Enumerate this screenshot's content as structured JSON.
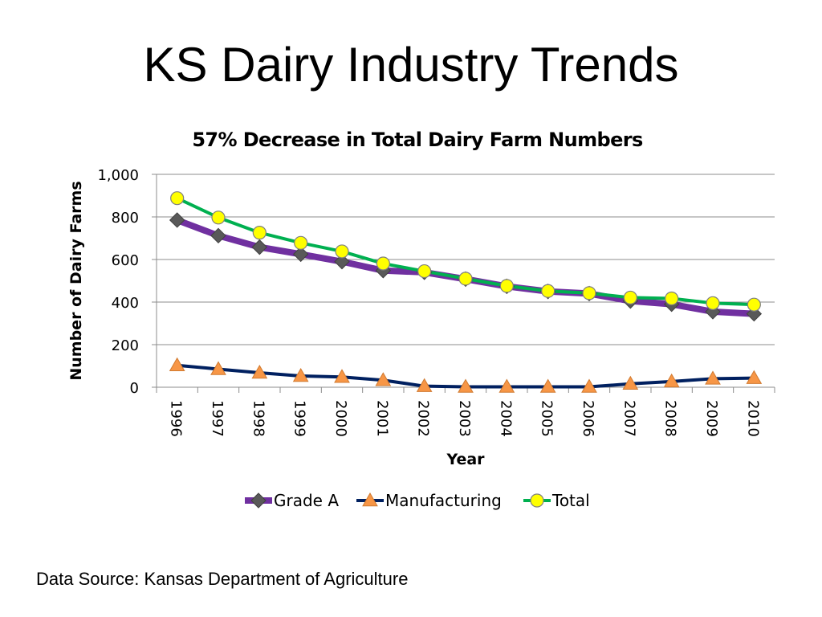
{
  "slide": {
    "title": "KS Dairy Industry Trends",
    "source": "Data Source: Kansas Department of Agriculture"
  },
  "chart_data": {
    "type": "line",
    "title": "57% Decrease in Total Dairy Farm Numbers",
    "xlabel": "Year",
    "ylabel": "Number of Dairy Farms",
    "x": [
      "1996",
      "1997",
      "1998",
      "1999",
      "2000",
      "2001",
      "2002",
      "2003",
      "2004",
      "2005",
      "2006",
      "2007",
      "2008",
      "2009",
      "2010"
    ],
    "ylim": [
      0,
      1000
    ],
    "yticks": [
      0,
      200,
      400,
      600,
      800,
      1000
    ],
    "ytick_labels": [
      "0",
      "200",
      "400",
      "600",
      "800",
      "1,000"
    ],
    "grid": true,
    "legend_position": "bottom",
    "series": [
      {
        "name": "Grade A",
        "color": "#7030a0",
        "marker": "diamond",
        "marker_color": "#595959",
        "values": [
          785,
          712,
          658,
          625,
          590,
          548,
          540,
          508,
          474,
          450,
          440,
          405,
          390,
          355,
          345
        ]
      },
      {
        "name": "Manufacturing",
        "color": "#002060",
        "marker": "triangle",
        "marker_color": "#f79646",
        "values": [
          103,
          85,
          68,
          53,
          48,
          33,
          5,
          2,
          2,
          2,
          2,
          16,
          27,
          40,
          43
        ]
      },
      {
        "name": "Total",
        "color": "#00b050",
        "marker": "circle",
        "marker_color": "#ffff00",
        "values": [
          888,
          797,
          726,
          678,
          638,
          581,
          545,
          510,
          476,
          452,
          442,
          421,
          417,
          395,
          388
        ]
      }
    ]
  }
}
